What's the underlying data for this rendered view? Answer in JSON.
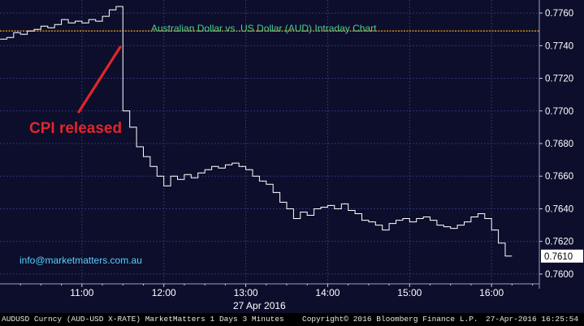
{
  "chart_data": {
    "type": "line",
    "title": "Australian Dollar vs. US Dollar (AUD) Intraday Chart",
    "date_label": "27 Apr 2016",
    "x_ticks": [
      "11:00",
      "12:00",
      "13:00",
      "14:00",
      "15:00",
      "16:00"
    ],
    "y_ticks": [
      "0.7600",
      "0.7620",
      "0.7640",
      "0.7660",
      "0.7680",
      "0.7700",
      "0.7720",
      "0.7740",
      "0.7760"
    ],
    "ylim": [
      0.7594,
      0.7768
    ],
    "xlim": [
      "10:00",
      "16:35"
    ],
    "reference_line": 0.7749,
    "last_value_label": "0.7610",
    "series": [
      {
        "times": [
          "10:00",
          "10:05",
          "10:10",
          "10:15",
          "10:20",
          "10:25",
          "10:30",
          "10:35",
          "10:40",
          "10:45",
          "10:50",
          "10:55",
          "11:00",
          "11:05",
          "11:10",
          "11:15",
          "11:20",
          "11:25",
          "11:30",
          "11:35",
          "11:40",
          "11:45",
          "11:50",
          "11:55",
          "12:00",
          "12:05",
          "12:10",
          "12:15",
          "12:20",
          "12:25",
          "12:30",
          "12:35",
          "12:40",
          "12:45",
          "12:50",
          "12:55",
          "13:00",
          "13:05",
          "13:10",
          "13:15",
          "13:20",
          "13:25",
          "13:30",
          "13:35",
          "13:40",
          "13:45",
          "13:50",
          "13:55",
          "14:00",
          "14:05",
          "14:10",
          "14:15",
          "14:20",
          "14:25",
          "14:30",
          "14:35",
          "14:40",
          "14:45",
          "14:50",
          "14:55",
          "15:00",
          "15:05",
          "15:10",
          "15:15",
          "15:20",
          "15:25",
          "15:30",
          "15:35",
          "15:40",
          "15:45",
          "15:50",
          "15:55",
          "16:00",
          "16:05",
          "16:10"
        ],
        "values": [
          0.7744,
          0.7745,
          0.7748,
          0.7747,
          0.7749,
          0.775,
          0.7752,
          0.7751,
          0.7753,
          0.7756,
          0.7754,
          0.7755,
          0.7754,
          0.7756,
          0.7755,
          0.7758,
          0.7762,
          0.7764,
          0.77,
          0.769,
          0.7678,
          0.7672,
          0.7666,
          0.766,
          0.7654,
          0.766,
          0.7658,
          0.7661,
          0.7659,
          0.7662,
          0.7664,
          0.7666,
          0.7665,
          0.7667,
          0.7668,
          0.7666,
          0.7664,
          0.766,
          0.7657,
          0.7655,
          0.765,
          0.7644,
          0.764,
          0.7634,
          0.7638,
          0.7636,
          0.764,
          0.7641,
          0.7642,
          0.764,
          0.7643,
          0.7639,
          0.7637,
          0.7633,
          0.7632,
          0.763,
          0.7627,
          0.7631,
          0.7633,
          0.7634,
          0.7632,
          0.7634,
          0.7635,
          0.7633,
          0.763,
          0.7629,
          0.7628,
          0.763,
          0.7632,
          0.7635,
          0.7637,
          0.7634,
          0.7627,
          0.7619,
          0.7611
        ]
      }
    ]
  },
  "annotations": {
    "cpi_label": "CPI released",
    "email": "info@marketmatters.com.au"
  },
  "footer": {
    "left": "AUDUSD Curncy (AUD-USD X-RATE) MarketMatters 1 Days 3 Minutes",
    "center": "Copyright© 2016 Bloomberg Finance L.P.",
    "right": "27-Apr-2016 16:25:54"
  },
  "colors": {
    "background": "#0c0e2b",
    "line": "#ffffff",
    "grid": "#2f3474",
    "reference_line": "#e59a1a",
    "annotation": "#e2252b",
    "title": "#4fcf90",
    "email": "#58d0ff"
  }
}
